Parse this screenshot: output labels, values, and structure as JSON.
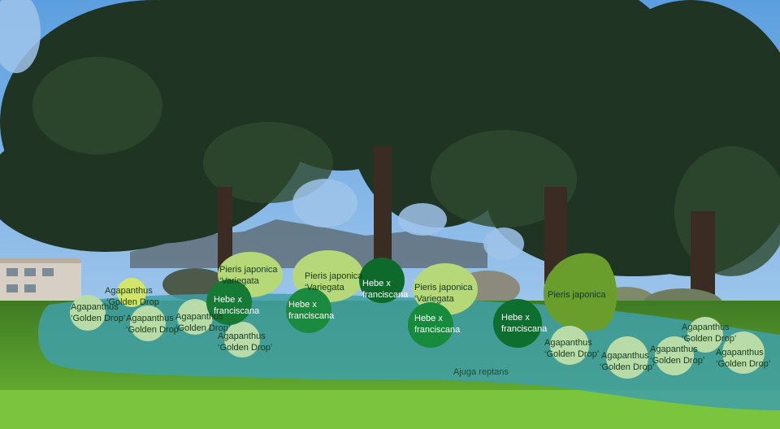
{
  "plants": {
    "agapanthus": "Agapanthus",
    "golden_drop": "‘Golden Drop’",
    "golden_drop_short": "‘Golden Drop",
    "pieris_japonica": "Pieris japonica",
    "variegata": "‘Variegata",
    "hebe": "Hebe x",
    "franciscana": "franciscana",
    "ajuga": "Ajuga reptans"
  },
  "colors": {
    "sky": "#7fb6ea",
    "tree_dark": "#1e3022",
    "grass": "#5fa82e",
    "ajuga_band": "#3f9fa6",
    "agapanthus": "#b9dba8",
    "pieris_variegata": "#b7d878",
    "hebe": "#1a8a3a",
    "pieris_japonica": "#6a9e2c"
  }
}
